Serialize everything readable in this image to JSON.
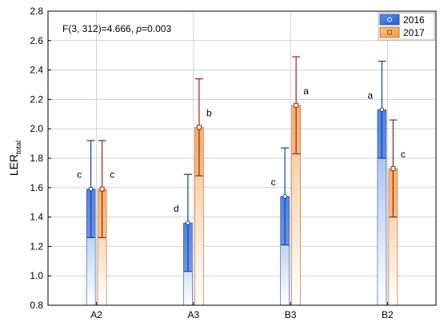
{
  "chart_data": {
    "type": "bar",
    "annotation_prefix": "F(3, 312)=4.666, ",
    "annotation_p": "p",
    "annotation_suffix": "=0.003",
    "ylabel_main": "LER",
    "ylabel_sub": "total",
    "xlabel": "",
    "ylim": [
      0.8,
      2.8
    ],
    "yticks": [
      "0.8",
      "1.0",
      "1.2",
      "1.4",
      "1.6",
      "1.8",
      "2.0",
      "2.2",
      "2.4",
      "2.6",
      "2.8"
    ],
    "grid": true,
    "legend_position": "top-right",
    "categories": [
      "A2",
      "A3",
      "B3",
      "B2"
    ],
    "series": [
      {
        "name": "2016",
        "color": "#1f5fd6",
        "values": [
          1.59,
          1.36,
          1.54,
          2.13
        ],
        "err_low": [
          1.26,
          1.03,
          1.21,
          1.8
        ],
        "err_high": [
          1.92,
          1.69,
          1.87,
          2.46
        ],
        "letters": [
          "c",
          "d",
          "c",
          "a"
        ]
      },
      {
        "name": "2017",
        "color": "#e07020",
        "values": [
          1.59,
          2.01,
          2.16,
          1.73
        ],
        "err_low": [
          1.26,
          1.68,
          1.83,
          1.4
        ],
        "err_high": [
          1.92,
          2.34,
          2.49,
          2.06
        ],
        "letters": [
          "c",
          "b",
          "a",
          "c"
        ]
      }
    ]
  }
}
